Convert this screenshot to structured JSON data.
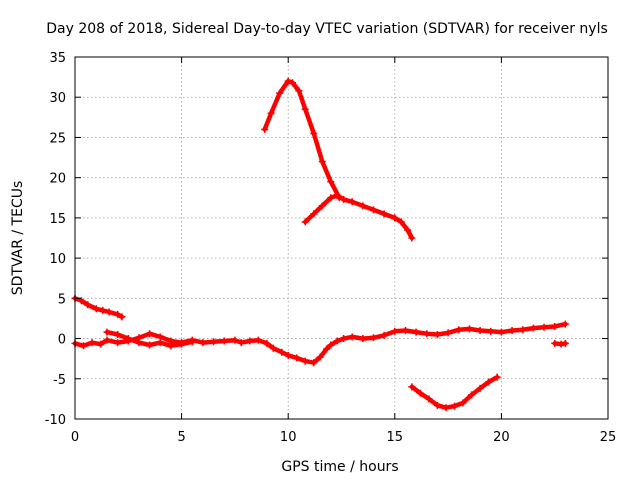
{
  "chart_data": {
    "type": "line",
    "title": "Day 208 of 2018, Sidereal Day-to-day VTEC variation (SDTVAR) for receiver nyls",
    "xlabel": "GPS time / hours",
    "ylabel": "SDTVAR / TECUs",
    "xlim": [
      0,
      25
    ],
    "ylim": [
      -10,
      35
    ],
    "xticks": [
      0,
      5,
      10,
      15,
      20,
      25
    ],
    "yticks": [
      -10,
      -5,
      0,
      5,
      10,
      15,
      20,
      25,
      30,
      35
    ],
    "grid": true,
    "color": "#ff0000",
    "series": [
      {
        "name": "segment-1",
        "x": [
          0.0,
          0.3,
          0.6,
          1.0,
          1.3,
          1.6,
          2.0,
          2.2
        ],
        "y": [
          5.0,
          4.7,
          4.2,
          3.7,
          3.5,
          3.3,
          3.0,
          2.7
        ]
      },
      {
        "name": "segment-2",
        "x": [
          0.0,
          0.4,
          0.8,
          1.2,
          1.5,
          2.0,
          2.5,
          3.0,
          3.5,
          4.0,
          4.5,
          5.0,
          5.5,
          6.0,
          6.5,
          7.0,
          7.5,
          7.8,
          8.2,
          8.6,
          9.0,
          9.3,
          9.7,
          10.0,
          10.4,
          10.8,
          11.2,
          11.5,
          11.8,
          12.0,
          12.3,
          12.6,
          13.0,
          13.5,
          14.0,
          14.5,
          15.0,
          15.5,
          16.0,
          16.5,
          17.0,
          17.5,
          18.0,
          18.5,
          19.0,
          19.5,
          20.0,
          20.5,
          21.0,
          21.5,
          22.0,
          22.5,
          23.0
        ],
        "y": [
          -0.6,
          -0.9,
          -0.5,
          -0.7,
          -0.2,
          -0.5,
          -0.3,
          0.1,
          0.6,
          0.2,
          -0.3,
          -0.5,
          -0.2,
          -0.5,
          -0.4,
          -0.3,
          -0.2,
          -0.5,
          -0.3,
          -0.2,
          -0.6,
          -1.2,
          -1.7,
          -2.1,
          -2.4,
          -2.8,
          -3.0,
          -2.3,
          -1.3,
          -0.8,
          -0.3,
          0.0,
          0.2,
          0.0,
          0.1,
          0.4,
          0.9,
          1.0,
          0.8,
          0.6,
          0.5,
          0.7,
          1.1,
          1.2,
          1.0,
          0.9,
          0.8,
          1.0,
          1.1,
          1.3,
          1.4,
          1.5,
          1.8
        ]
      },
      {
        "name": "segment-3",
        "x": [
          1.5,
          2.0,
          2.5,
          3.0,
          3.5,
          4.0,
          4.5,
          5.0,
          5.5
        ],
        "y": [
          0.8,
          0.5,
          0.0,
          -0.5,
          -0.8,
          -0.5,
          -0.9,
          -0.7,
          -0.4
        ]
      },
      {
        "name": "segment-4",
        "x": [
          8.9,
          9.2,
          9.6,
          10.0,
          10.2,
          10.5,
          10.8,
          11.2,
          11.6,
          12.0,
          12.4
        ],
        "y": [
          26.0,
          28.0,
          30.5,
          32.0,
          31.8,
          30.8,
          28.5,
          25.5,
          22.0,
          19.5,
          17.5
        ]
      },
      {
        "name": "segment-5",
        "x": [
          10.8,
          11.2,
          11.6,
          12.0,
          12.3,
          12.6,
          13.0,
          13.5,
          14.0,
          14.5,
          15.0,
          15.3,
          15.6,
          15.8
        ],
        "y": [
          14.5,
          15.5,
          16.5,
          17.5,
          17.8,
          17.3,
          17.0,
          16.5,
          16.0,
          15.5,
          15.0,
          14.5,
          13.5,
          12.5
        ]
      },
      {
        "name": "segment-6",
        "x": [
          15.8,
          16.2,
          16.6,
          17.0,
          17.4,
          17.8,
          18.2,
          18.6,
          19.0,
          19.4,
          19.8
        ],
        "y": [
          -6.0,
          -6.8,
          -7.5,
          -8.3,
          -8.6,
          -8.4,
          -8.0,
          -7.0,
          -6.2,
          -5.4,
          -4.8
        ]
      },
      {
        "name": "segment-7",
        "x": [
          22.5,
          22.8,
          23.0
        ],
        "y": [
          -0.6,
          -0.7,
          -0.6
        ]
      }
    ]
  }
}
